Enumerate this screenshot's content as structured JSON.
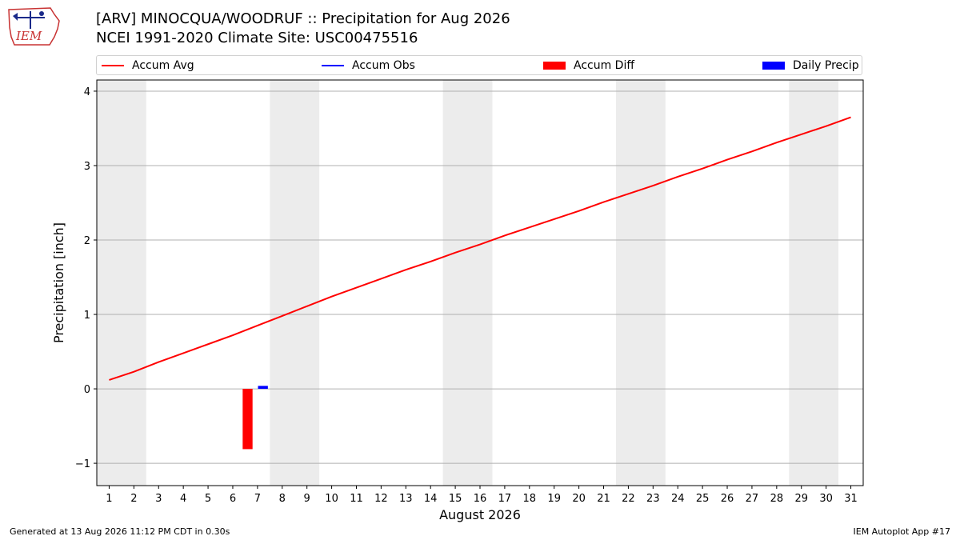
{
  "header": {
    "title_line1": "[ARV] MINOCQUA/WOODRUF :: Precipitation for Aug 2026",
    "title_line2": "NCEI 1991-2020 Climate Site: USC00475516",
    "logo_text": "IEM"
  },
  "legend": {
    "items": [
      {
        "label": "Accum Avg",
        "kind": "line",
        "color": "#ff0000"
      },
      {
        "label": "Accum Obs",
        "kind": "line",
        "color": "#0000ff"
      },
      {
        "label": "Accum Diff",
        "kind": "bar",
        "color": "#ff0000"
      },
      {
        "label": "Daily Precip",
        "kind": "bar",
        "color": "#0000ff"
      }
    ]
  },
  "footer": {
    "generated": "Generated at 13 Aug 2026 11:12 PM CDT in 0.30s",
    "app": "IEM Autoplot App #17"
  },
  "chart_data": {
    "type": "line",
    "xlabel": "August 2026",
    "ylabel": "Precipitation [inch]",
    "xlim": [
      0.5,
      31.5
    ],
    "ylim": [
      -1.3,
      4.15
    ],
    "yticks": [
      -1,
      0,
      1,
      2,
      3,
      4
    ],
    "ytick_labels": [
      "−1",
      "0",
      "1",
      "2",
      "3",
      "4"
    ],
    "x": [
      1,
      2,
      3,
      4,
      5,
      6,
      7,
      8,
      9,
      10,
      11,
      12,
      13,
      14,
      15,
      16,
      17,
      18,
      19,
      20,
      21,
      22,
      23,
      24,
      25,
      26,
      27,
      28,
      29,
      30,
      31
    ],
    "grid": "horizontal",
    "weekend_shading": [
      [
        0.5,
        2.5
      ],
      [
        7.5,
        9.5
      ],
      [
        14.5,
        16.5
      ],
      [
        21.5,
        23.5
      ],
      [
        28.5,
        30.5
      ]
    ],
    "shade_color": "#ececec",
    "series": [
      {
        "name": "Accum Avg",
        "type": "line",
        "color": "#ff0000",
        "values": [
          0.12,
          0.23,
          0.36,
          0.48,
          0.6,
          0.72,
          0.85,
          0.98,
          1.11,
          1.24,
          1.36,
          1.48,
          1.6,
          1.71,
          1.83,
          1.94,
          2.06,
          2.17,
          2.28,
          2.39,
          2.51,
          2.62,
          2.73,
          2.85,
          2.96,
          3.08,
          3.19,
          3.31,
          3.42,
          3.53,
          3.65
        ]
      },
      {
        "name": "Accum Diff",
        "type": "bar",
        "color": "#ff0000",
        "x": [
          7
        ],
        "values": [
          -0.81
        ]
      },
      {
        "name": "Daily Precip",
        "type": "bar",
        "color": "#0000ff",
        "x": [
          7
        ],
        "values": [
          0.04
        ]
      }
    ]
  }
}
